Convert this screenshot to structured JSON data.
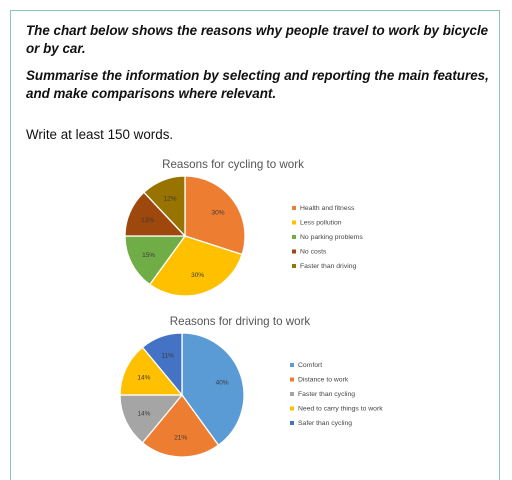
{
  "task": {
    "line1": "The chart below shows the reasons why people travel to work by bicycle or by car.",
    "line2": "Summarise the information by selecting and reporting the main features, and make comparisons where relevant.",
    "line3": "Write at least 150 words."
  },
  "chart_data": [
    {
      "type": "pie",
      "title": "Reasons for cycling to work",
      "legend_position": "right",
      "slices": [
        {
          "name": "Health and fitness",
          "value": 30,
          "label": "30%",
          "color": "#ed7d31"
        },
        {
          "name": "Less pollution",
          "value": 30,
          "label": "30%",
          "color": "#ffc000"
        },
        {
          "name": "No parking problems",
          "value": 15,
          "label": "15%",
          "color": "#70ad47"
        },
        {
          "name": "No costs",
          "value": 13,
          "label": "13%",
          "color": "#9e480e"
        },
        {
          "name": "Faster than driving",
          "value": 12,
          "label": "12%",
          "color": "#997300"
        }
      ]
    },
    {
      "type": "pie",
      "title": "Reasons for driving to work",
      "legend_position": "right",
      "slices": [
        {
          "name": "Comfort",
          "value": 40,
          "label": "40%",
          "color": "#5b9bd5"
        },
        {
          "name": "Distance to work",
          "value": 21,
          "label": "21%",
          "color": "#ed7d31"
        },
        {
          "name": "Faster than cycling",
          "value": 14,
          "label": "14%",
          "color": "#a5a5a5"
        },
        {
          "name": "Need to carry things to work",
          "value": 14,
          "label": "14%",
          "color": "#ffc000"
        },
        {
          "name": "Safer than cycling",
          "value": 11,
          "label": "11%",
          "color": "#4472c4"
        }
      ]
    }
  ]
}
